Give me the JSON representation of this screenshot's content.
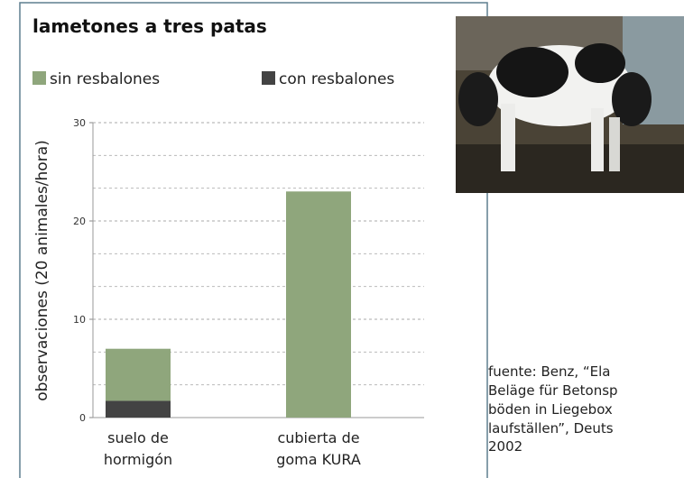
{
  "chart_data": {
    "type": "stacked_bar",
    "title": "lametones a tres patas",
    "y_label": "observaciones (20 animales/hora)",
    "categories": [
      "suelo de hormigón",
      "cubierta de goma KURA"
    ],
    "series": [
      {
        "name": "sin resbalones",
        "color": "#8fa67c",
        "values": [
          5.3,
          23
        ]
      },
      {
        "name": "con resbalones",
        "color": "#434343",
        "values": [
          1.7,
          0
        ]
      }
    ],
    "ylim": [
      0,
      30
    ],
    "yticks": [
      0,
      10,
      20,
      30
    ],
    "minor_yticks": [
      3.333,
      6.667,
      13.333,
      16.667,
      23.333,
      26.667
    ],
    "grid": true
  },
  "source": [
    "fuente: Benz, “Ela",
    "Beläge für Betonsp",
    "böden in Liegebox",
    "laufställen”, Deuts",
    "2002"
  ]
}
